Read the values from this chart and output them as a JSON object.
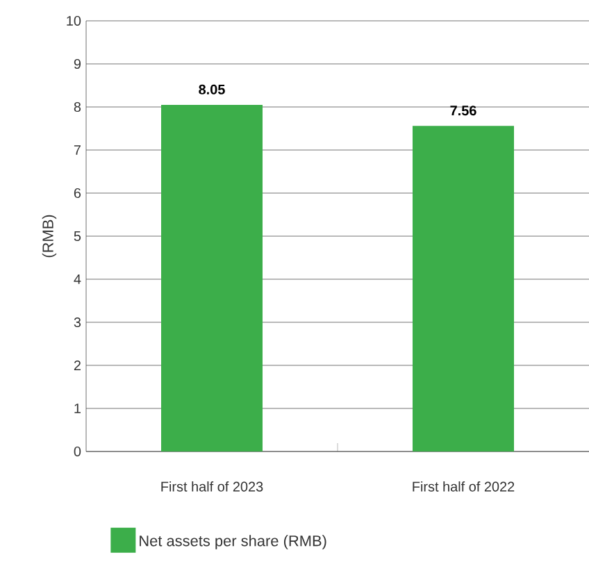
{
  "chart_data": {
    "type": "bar",
    "ylabel": "(RMB)",
    "categories": [
      "First half of 2023",
      "First half of 2022"
    ],
    "series": [
      {
        "name": "Net assets per share (RMB)",
        "color": "#3cae4a",
        "values": [
          8.05,
          7.56
        ]
      }
    ],
    "ylim": [
      0,
      10
    ],
    "yticks": [
      0,
      1,
      2,
      3,
      4,
      5,
      6,
      7,
      8,
      9,
      10
    ],
    "grid": "y",
    "legend": "bottom",
    "data_labels": true
  }
}
